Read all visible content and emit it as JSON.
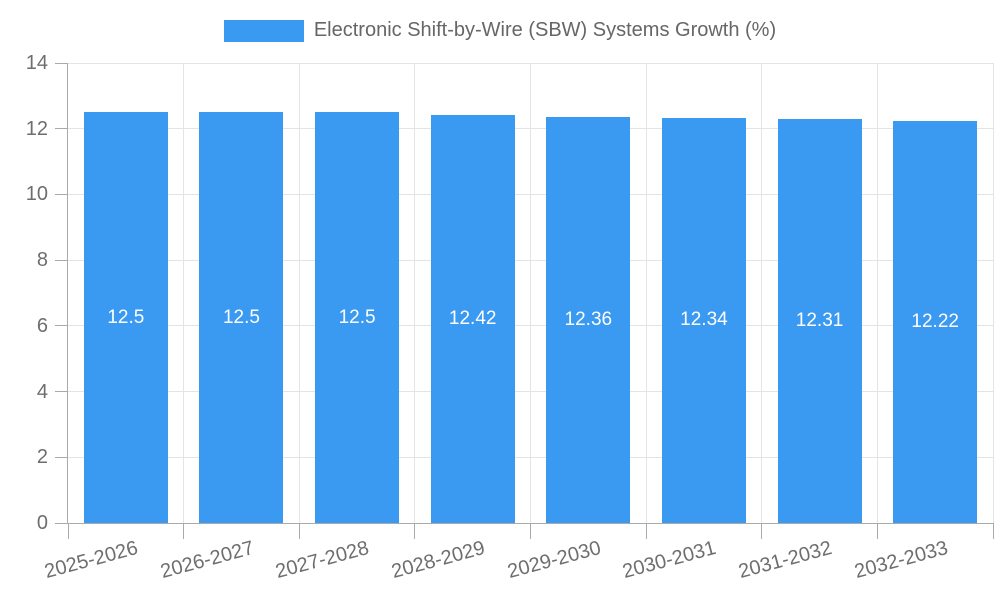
{
  "chart_data": {
    "type": "bar",
    "title": "",
    "legend": "Electronic Shift-by-Wire (SBW) Systems Growth (%)",
    "legend_position": "top",
    "categories": [
      "2025-2026",
      "2026-2027",
      "2027-2028",
      "2028-2029",
      "2029-2030",
      "2030-2031",
      "2031-2032",
      "2032-2033"
    ],
    "values": [
      12.5,
      12.5,
      12.5,
      12.42,
      12.36,
      12.34,
      12.31,
      12.22
    ],
    "value_labels": [
      "12.5",
      "12.5",
      "12.5",
      "12.42",
      "12.36",
      "12.34",
      "12.31",
      "12.22"
    ],
    "xlabel": "",
    "ylabel": "",
    "ylim": [
      0,
      14
    ],
    "ytick_step": 2,
    "grid": true,
    "colors": {
      "bar": "#3a99f0",
      "bar_label": "#ffffff",
      "gridline": "#e4e4e4",
      "axis_line": "#aaaaaa",
      "axis_text": "#6e6e6e",
      "legend_text": "#666666"
    }
  }
}
